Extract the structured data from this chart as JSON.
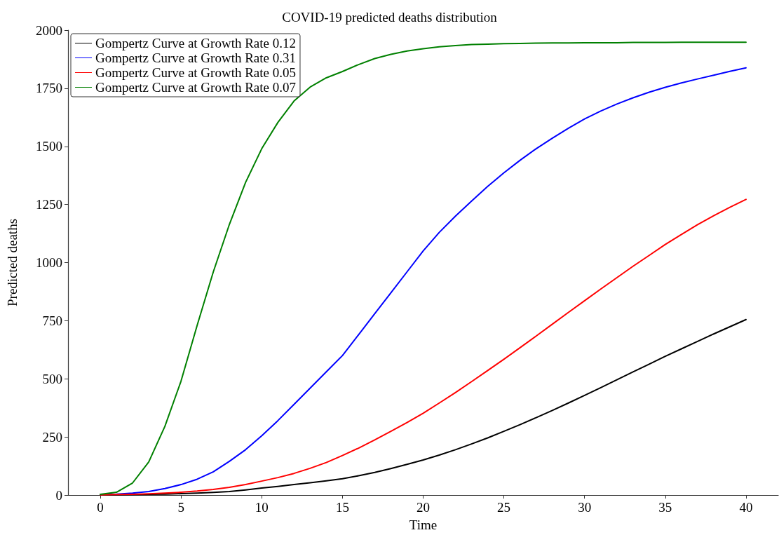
{
  "chart_data": {
    "type": "line",
    "title": "COVID-19 predicted deaths distribution",
    "xlabel": "Time",
    "ylabel": "Predicted deaths",
    "x": [
      0,
      1,
      2,
      3,
      4,
      5,
      6,
      7,
      8,
      9,
      10,
      11,
      12,
      13,
      14,
      15,
      16,
      17,
      18,
      19,
      20,
      21,
      22,
      23,
      24,
      25,
      26,
      27,
      28,
      29,
      30,
      31,
      32,
      33,
      34,
      35,
      36,
      37,
      38,
      39,
      40
    ],
    "series": [
      {
        "name": "Gompertz Curve at Growth Rate 0.12",
        "color": "#000000",
        "values": [
          0,
          1,
          2,
          3,
          4,
          6,
          8,
          11,
          15,
          22,
          30,
          37,
          45,
          53,
          61,
          70,
          83,
          97,
          114,
          132,
          151,
          172,
          195,
          220,
          246,
          274,
          303,
          333,
          364,
          396,
          429,
          462,
          496,
          530,
          563,
          597,
          629,
          661,
          693,
          724,
          755
        ]
      },
      {
        "name": "Gompertz Curve at Growth Rate 0.31",
        "color": "#0000ff",
        "values": [
          2,
          4,
          8,
          15,
          28,
          45,
          68,
          100,
          145,
          195,
          255,
          320,
          390,
          460,
          530,
          600,
          690,
          780,
          870,
          960,
          1050,
          1130,
          1200,
          1265,
          1328,
          1386,
          1440,
          1490,
          1535,
          1578,
          1618,
          1652,
          1682,
          1709,
          1733,
          1754,
          1773,
          1790,
          1806,
          1823,
          1838
        ]
      },
      {
        "name": "Gompertz Curve at Growth Rate 0.05",
        "color": "#ff0000",
        "values": [
          1,
          2,
          3,
          5,
          8,
          12,
          17,
          24,
          33,
          45,
          60,
          75,
          93,
          115,
          140,
          170,
          202,
          237,
          274,
          312,
          352,
          396,
          441,
          488,
          536,
          584,
          634,
          684,
          735,
          786,
          836,
          886,
          935,
          984,
          1031,
          1078,
          1121,
          1163,
          1202,
          1238,
          1272
        ]
      },
      {
        "name": "Gompertz Curve at Growth Rate 0.07",
        "color": "#008000",
        "values": [
          3,
          12,
          52,
          142,
          295,
          490,
          730,
          960,
          1165,
          1345,
          1490,
          1603,
          1695,
          1755,
          1795,
          1822,
          1852,
          1878,
          1896,
          1910,
          1920,
          1928,
          1934,
          1938,
          1940,
          1942,
          1943,
          1944,
          1945,
          1945,
          1946,
          1946,
          1946,
          1947,
          1947,
          1947,
          1948,
          1948,
          1948,
          1948,
          1948
        ]
      }
    ],
    "xlim": [
      -2,
      42
    ],
    "xticks": [
      0,
      5,
      10,
      15,
      20,
      25,
      30,
      35,
      40
    ],
    "ylim": [
      0,
      2000
    ],
    "yticks": [
      0,
      250,
      500,
      750,
      1000,
      1250,
      1500,
      1750,
      2000
    ],
    "grid": false,
    "legend": "top left",
    "marker": "none",
    "line_style": "solid"
  }
}
